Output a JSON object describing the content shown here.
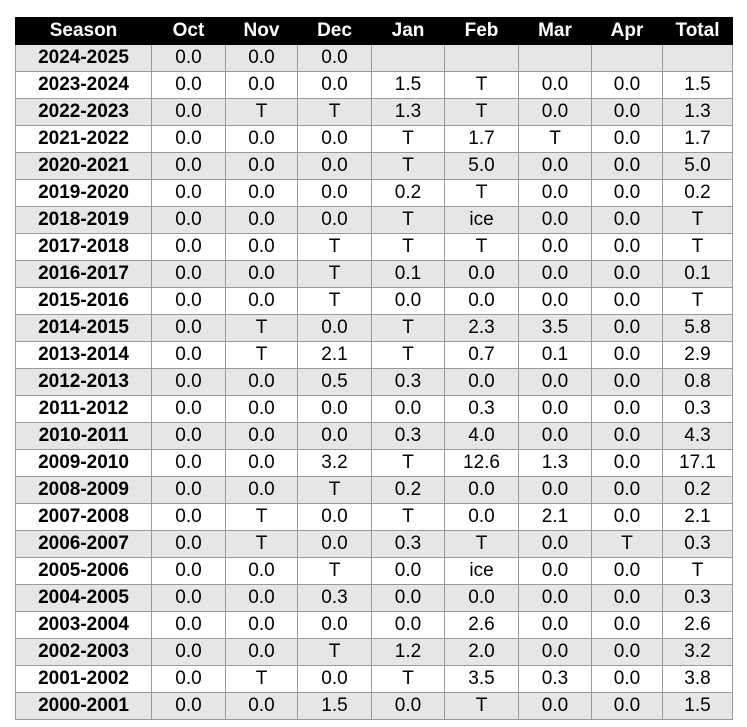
{
  "table": {
    "headers": [
      "Season",
      "Oct",
      "Nov",
      "Dec",
      "Jan",
      "Feb",
      "Mar",
      "Apr",
      "Total"
    ],
    "rows": [
      [
        "2024-2025",
        "0.0",
        "0.0",
        "0.0",
        "",
        "",
        "",
        "",
        ""
      ],
      [
        "2023-2024",
        "0.0",
        "0.0",
        "0.0",
        "1.5",
        "T",
        "0.0",
        "0.0",
        "1.5"
      ],
      [
        "2022-2023",
        "0.0",
        "T",
        "T",
        "1.3",
        "T",
        "0.0",
        "0.0",
        "1.3"
      ],
      [
        "2021-2022",
        "0.0",
        "0.0",
        "0.0",
        "T",
        "1.7",
        "T",
        "0.0",
        "1.7"
      ],
      [
        "2020-2021",
        "0.0",
        "0.0",
        "0.0",
        "T",
        "5.0",
        "0.0",
        "0.0",
        "5.0"
      ],
      [
        "2019-2020",
        "0.0",
        "0.0",
        "0.0",
        "0.2",
        "T",
        "0.0",
        "0.0",
        "0.2"
      ],
      [
        "2018-2019",
        "0.0",
        "0.0",
        "0.0",
        "T",
        "ice",
        "0.0",
        "0.0",
        "T"
      ],
      [
        "2017-2018",
        "0.0",
        "0.0",
        "T",
        "T",
        "T",
        "0.0",
        "0.0",
        "T"
      ],
      [
        "2016-2017",
        "0.0",
        "0.0",
        "T",
        "0.1",
        "0.0",
        "0.0",
        "0.0",
        "0.1"
      ],
      [
        "2015-2016",
        "0.0",
        "0.0",
        "T",
        "0.0",
        "0.0",
        "0.0",
        "0.0",
        "T"
      ],
      [
        "2014-2015",
        "0.0",
        "T",
        "0.0",
        "T",
        "2.3",
        "3.5",
        "0.0",
        "5.8"
      ],
      [
        "2013-2014",
        "0.0",
        "T",
        "2.1",
        "T",
        "0.7",
        "0.1",
        "0.0",
        "2.9"
      ],
      [
        "2012-2013",
        "0.0",
        "0.0",
        "0.5",
        "0.3",
        "0.0",
        "0.0",
        "0.0",
        "0.8"
      ],
      [
        "2011-2012",
        "0.0",
        "0.0",
        "0.0",
        "0.0",
        "0.3",
        "0.0",
        "0.0",
        "0.3"
      ],
      [
        "2010-2011",
        "0.0",
        "0.0",
        "0.0",
        "0.3",
        "4.0",
        "0.0",
        "0.0",
        "4.3"
      ],
      [
        "2009-2010",
        "0.0",
        "0.0",
        "3.2",
        "T",
        "12.6",
        "1.3",
        "0.0",
        "17.1"
      ],
      [
        "2008-2009",
        "0.0",
        "0.0",
        "T",
        "0.2",
        "0.0",
        "0.0",
        "0.0",
        "0.2"
      ],
      [
        "2007-2008",
        "0.0",
        "T",
        "0.0",
        "T",
        "0.0",
        "2.1",
        "0.0",
        "2.1"
      ],
      [
        "2006-2007",
        "0.0",
        "T",
        "0.0",
        "0.3",
        "T",
        "0.0",
        "T",
        "0.3"
      ],
      [
        "2005-2006",
        "0.0",
        "0.0",
        "T",
        "0.0",
        "ice",
        "0.0",
        "0.0",
        "T"
      ],
      [
        "2004-2005",
        "0.0",
        "0.0",
        "0.3",
        "0.0",
        "0.0",
        "0.0",
        "0.0",
        "0.3"
      ],
      [
        "2003-2004",
        "0.0",
        "0.0",
        "0.0",
        "0.0",
        "2.6",
        "0.0",
        "0.0",
        "2.6"
      ],
      [
        "2002-2003",
        "0.0",
        "0.0",
        "T",
        "1.2",
        "2.0",
        "0.0",
        "0.0",
        "3.2"
      ],
      [
        "2001-2002",
        "0.0",
        "T",
        "0.0",
        "T",
        "3.5",
        "0.3",
        "0.0",
        "3.8"
      ],
      [
        "2000-2001",
        "0.0",
        "0.0",
        "1.5",
        "0.0",
        "T",
        "0.0",
        "0.0",
        "1.5"
      ]
    ]
  },
  "colors": {
    "header_bg": "#000000",
    "header_text": "#ffffff",
    "row_shade": "#e6e6e6",
    "grid_line": "#9a9a9a"
  }
}
